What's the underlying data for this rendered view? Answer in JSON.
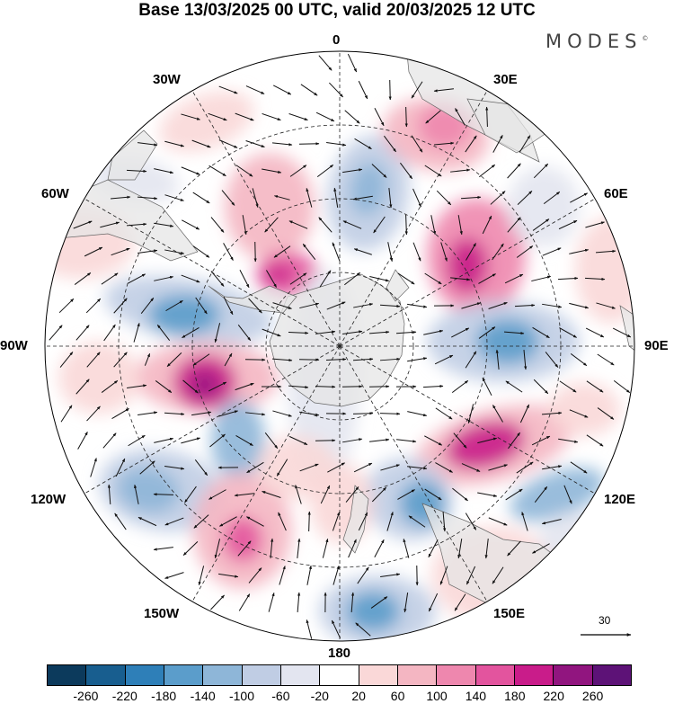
{
  "header": {
    "title": "Base 13/03/2025 00 UTC, valid 20/03/2025 12 UTC",
    "brand": "MODES",
    "brand_mark": "©"
  },
  "map": {
    "projection": "south-polar-stereographic",
    "longitude_labels": {
      "top": "0",
      "top_right": "30E",
      "upper_right": "60E",
      "right": "90E",
      "lower_right": "120E",
      "bottom_right": "150E",
      "bottom": "180",
      "bottom_left": "150W",
      "lower_left": "120W",
      "left": "90W",
      "upper_left": "60W",
      "top_left": "30W"
    },
    "vector_scale_label": "30",
    "colors": {
      "land": "#e6e6e6",
      "coast": "#666666",
      "grid": "#222222",
      "arrow": "#111111"
    }
  },
  "colorbar": {
    "colors": [
      "#0c3a5c",
      "#185e8f",
      "#2e7fb8",
      "#5b9dcb",
      "#8eb6d8",
      "#c0cde4",
      "#e3e5f0",
      "#ffffff",
      "#fad8d8",
      "#f4b6c2",
      "#ee87ae",
      "#e3549e",
      "#c91c8a",
      "#91157f",
      "#5d1277"
    ],
    "ticks": [
      "-260",
      "-220",
      "-180",
      "-140",
      "-100",
      "-60",
      "-20",
      "20",
      "60",
      "100",
      "140",
      "180",
      "220",
      "260"
    ]
  }
}
